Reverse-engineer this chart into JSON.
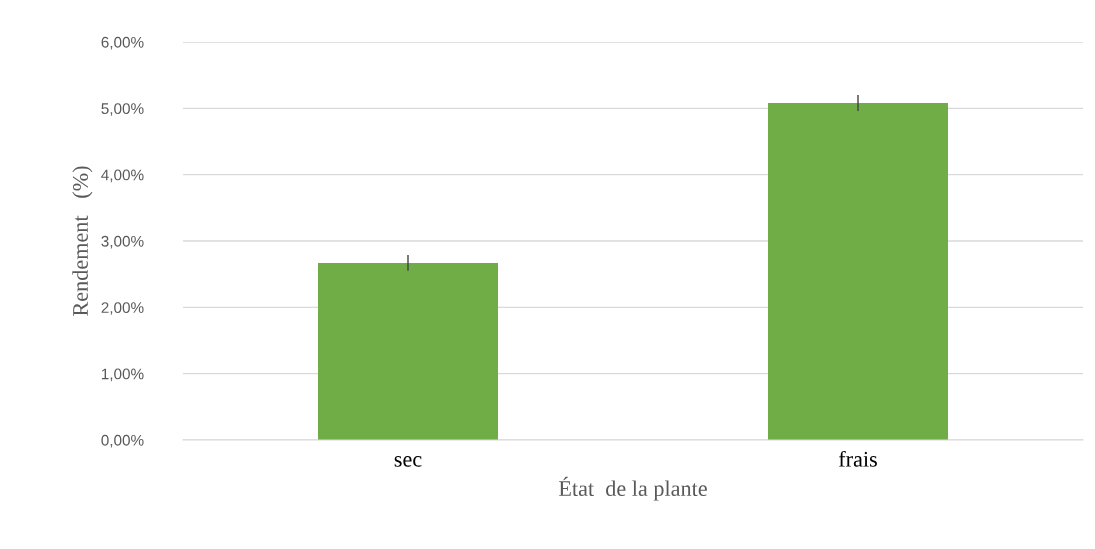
{
  "chart_data": {
    "type": "bar",
    "xlabel": "État  de la plante",
    "ylabel": "Rendement   (%)",
    "categories": [
      "sec",
      "frais"
    ],
    "values": [
      2.67,
      5.08
    ],
    "errors": [
      0.12,
      0.12
    ],
    "color": "#70ad47",
    "ylim": [
      0,
      6
    ],
    "yticks": [
      {
        "value": 0,
        "label": "0,00%"
      },
      {
        "value": 1,
        "label": "1,00%"
      },
      {
        "value": 2,
        "label": "2,00%"
      },
      {
        "value": 3,
        "label": "3,00%"
      },
      {
        "value": 4,
        "label": "4,00%"
      },
      {
        "value": 5,
        "label": "5,00%"
      },
      {
        "value": 6,
        "label": "6,00%"
      }
    ],
    "grid": "y",
    "legend": false
  }
}
